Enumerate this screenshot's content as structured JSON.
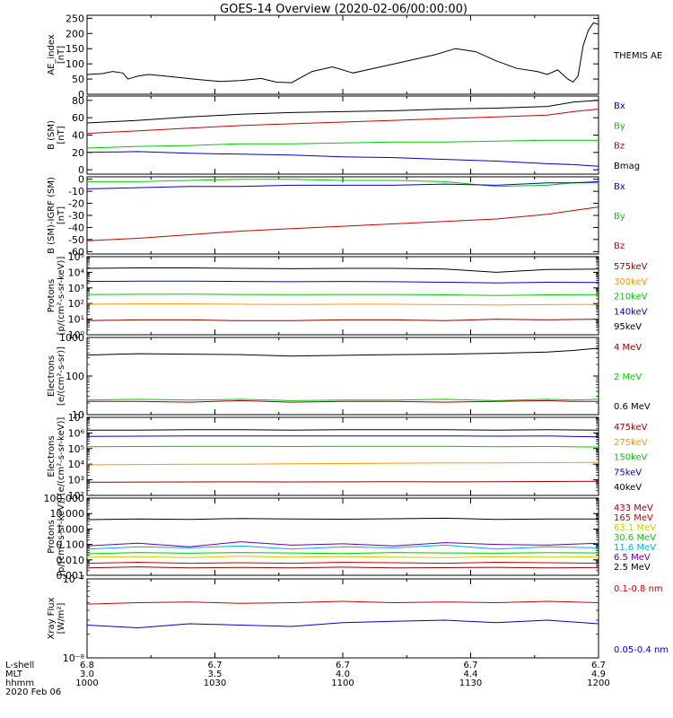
{
  "title": "GOES-14 Overview (2020-02-06/00:00:00)",
  "colors": {
    "black": "#000000",
    "red": "#cc0000",
    "green": "#00cc00",
    "blue": "#0000cc",
    "orange": "#ff9900",
    "cyan": "#00aaff",
    "yellow": "#cccc00",
    "purple": "#6600aa",
    "dark_red": "#990000"
  },
  "footer": {
    "row_labels": [
      "L-shell",
      "MLT",
      "hhmm",
      "2020 Feb 06"
    ],
    "ticks": [
      {
        "time": 1000,
        "lshell": "6.8",
        "mlt": "3.0",
        "hhmm": "1000"
      },
      {
        "time": 1030,
        "lshell": "6.7",
        "mlt": "3.5",
        "hhmm": "1030"
      },
      {
        "time": 1100,
        "lshell": "6.7",
        "mlt": "4.0",
        "hhmm": "1100"
      },
      {
        "time": 1130,
        "lshell": "6.7",
        "mlt": "4.4",
        "hhmm": "1130"
      },
      {
        "time": 1200,
        "lshell": "6.7",
        "mlt": "4.9",
        "hhmm": "1200"
      }
    ]
  },
  "chart_data": [
    {
      "type": "line",
      "ylabel": [
        "AE_index",
        "[nT]"
      ],
      "ylim": [
        0,
        260
      ],
      "scale": "linear",
      "yticks": [
        0,
        50,
        100,
        150,
        200,
        250
      ],
      "ytick_labels": [
        "0",
        "50",
        "100",
        "150",
        "200",
        "250"
      ],
      "x": [
        0,
        3,
        5,
        7,
        8,
        10,
        12,
        14,
        18,
        22,
        26,
        30,
        34,
        37,
        40,
        44,
        48,
        52,
        56,
        60,
        64,
        68,
        72,
        76,
        80,
        84,
        88,
        90,
        92,
        94,
        95,
        96,
        97,
        98,
        99,
        100
      ],
      "series": [
        {
          "name": "THEMIS AE",
          "color": "black",
          "values": [
            65,
            68,
            75,
            70,
            50,
            60,
            65,
            62,
            55,
            48,
            42,
            45,
            52,
            40,
            38,
            75,
            90,
            70,
            85,
            100,
            115,
            130,
            150,
            140,
            110,
            85,
            75,
            65,
            80,
            50,
            40,
            60,
            160,
            210,
            235,
            230
          ]
        }
      ],
      "labels": [
        {
          "text": "THEMIS AE",
          "color": "black"
        }
      ]
    },
    {
      "type": "line",
      "ylabel": [
        "B (SM)",
        "[nT]"
      ],
      "ylim": [
        -5,
        85
      ],
      "scale": "linear",
      "yticks": [
        0,
        20,
        40,
        60,
        80
      ],
      "ytick_labels": [
        "0",
        "20",
        "40",
        "60",
        "80"
      ],
      "x": [
        0,
        10,
        20,
        30,
        40,
        50,
        60,
        70,
        80,
        90,
        95,
        100
      ],
      "series": [
        {
          "name": "Bmag",
          "color": "black",
          "values": [
            54,
            57,
            61,
            64,
            66,
            67,
            68,
            70,
            71,
            73,
            78,
            80
          ]
        },
        {
          "name": "Bz",
          "color": "red",
          "values": [
            42,
            45,
            48,
            51,
            53,
            55,
            57,
            59,
            61,
            63,
            67,
            70
          ]
        },
        {
          "name": "By",
          "color": "green",
          "values": [
            25,
            27,
            28,
            30,
            30,
            31,
            32,
            32,
            33,
            34,
            34,
            34
          ]
        },
        {
          "name": "Bx",
          "color": "blue",
          "values": [
            20,
            21,
            19,
            18,
            17,
            15,
            14,
            12,
            10,
            7,
            6,
            4
          ]
        }
      ],
      "labels": [
        {
          "text": "Bx",
          "color": "blue"
        },
        {
          "text": "By",
          "color": "green"
        },
        {
          "text": "Bz",
          "color": "red"
        },
        {
          "text": "Bmag",
          "color": "black"
        }
      ]
    },
    {
      "type": "line",
      "ylabel": [
        "B (SM)-IGRF (SM)",
        "[nT]"
      ],
      "ylim": [
        -62,
        2
      ],
      "scale": "linear",
      "yticks": [
        0,
        -10,
        -20,
        -30,
        -40,
        -50,
        -60
      ],
      "ytick_labels": [
        "0",
        "-10",
        "-20",
        "-30",
        "-40",
        "-50",
        "-60"
      ],
      "x": [
        0,
        10,
        20,
        30,
        40,
        50,
        60,
        70,
        80,
        90,
        95,
        100
      ],
      "series": [
        {
          "name": "By",
          "color": "green",
          "values": [
            -2,
            -2,
            -1,
            0,
            0,
            -1,
            -1,
            -2,
            -6,
            -5,
            -3,
            -3
          ]
        },
        {
          "name": "Bx",
          "color": "blue",
          "values": [
            -8,
            -7,
            -6,
            -6,
            -5,
            -5,
            -5,
            -4,
            -5,
            -3,
            -3,
            -2
          ]
        },
        {
          "name": "Bz",
          "color": "red",
          "values": [
            -51,
            -49,
            -46,
            -43,
            -41,
            -39,
            -37,
            -35,
            -33,
            -29,
            -26,
            -23
          ]
        }
      ],
      "labels": [
        {
          "text": "Bx",
          "color": "blue"
        },
        {
          "text": "By",
          "color": "green"
        },
        {
          "text": "Bz",
          "color": "red"
        }
      ]
    },
    {
      "type": "line",
      "ylabel": [
        "Protons",
        "[p/(cm²-s-sr-keV)]"
      ],
      "ylim": [
        1,
        100000
      ],
      "scale": "log",
      "yticks": [
        1,
        10,
        100,
        1000,
        10000,
        100000
      ],
      "ytick_labels": [
        "10⁰",
        "10¹",
        "10²",
        "10³",
        "10⁴",
        "10⁵"
      ],
      "x": [
        0,
        10,
        20,
        30,
        40,
        50,
        60,
        70,
        80,
        90,
        100
      ],
      "series": [
        {
          "name": "95keV",
          "color": "black",
          "values": [
            18000,
            19000,
            19000,
            18000,
            17000,
            18000,
            18000,
            16000,
            10000,
            15000,
            16000
          ]
        },
        {
          "name": "140keV",
          "color": "blue",
          "values": [
            2600,
            2700,
            2700,
            2600,
            2500,
            2600,
            2500,
            2300,
            2100,
            2300,
            2200
          ]
        },
        {
          "name": "210keV",
          "color": "green",
          "values": [
            380,
            390,
            400,
            380,
            370,
            380,
            380,
            360,
            330,
            360,
            370
          ]
        },
        {
          "name": "300keV",
          "color": "orange",
          "values": [
            90,
            95,
            95,
            90,
            88,
            90,
            90,
            85,
            80,
            85,
            88
          ]
        },
        {
          "name": "575keV",
          "color": "dark_red",
          "values": [
            8,
            9,
            9,
            8,
            8,
            9,
            9,
            8,
            10,
            9,
            10
          ]
        }
      ],
      "labels": [
        {
          "text": "575keV",
          "color": "dark_red"
        },
        {
          "text": "300keV",
          "color": "orange"
        },
        {
          "text": "210keV",
          "color": "green"
        },
        {
          "text": "140keV",
          "color": "blue"
        },
        {
          "text": "95keV",
          "color": "black"
        }
      ]
    },
    {
      "type": "line",
      "ylabel": [
        "Electrons",
        "[e/(cm²-s-sr)]"
      ],
      "ylim": [
        10,
        1000
      ],
      "scale": "log",
      "yticks": [
        10,
        100,
        1000
      ],
      "ytick_labels": [
        "10",
        "100",
        "1000"
      ],
      "x": [
        0,
        10,
        20,
        30,
        40,
        50,
        60,
        70,
        80,
        90,
        95,
        100
      ],
      "series": [
        {
          "name": "0.6 MeV",
          "color": "black",
          "values": [
            350,
            380,
            370,
            360,
            330,
            345,
            360,
            370,
            390,
            420,
            460,
            530
          ]
        },
        {
          "name": "2 MeV",
          "color": "green",
          "values": [
            24,
            25,
            24,
            25,
            23,
            24,
            24,
            25,
            23,
            25,
            24,
            25
          ]
        },
        {
          "name": "4 MeV",
          "color": "dark_red",
          "values": [
            22,
            22,
            21,
            23,
            21,
            22,
            22,
            21,
            22,
            23,
            22,
            22
          ]
        }
      ],
      "labels": [
        {
          "text": "4 MeV",
          "color": "dark_red"
        },
        {
          "text": "2 MeV",
          "color": "green"
        },
        {
          "text": "0.6 MeV",
          "color": "black"
        }
      ]
    },
    {
      "type": "line",
      "ylabel": [
        "Electrons",
        "[e/(cm²-s-sr-keV)]"
      ],
      "ylim": [
        100,
        10000000
      ],
      "scale": "log",
      "yticks": [
        100,
        1000,
        10000,
        100000,
        1000000,
        10000000
      ],
      "ytick_labels": [
        "10²",
        "10³",
        "10⁴",
        "10⁵",
        "10⁶",
        "10⁷"
      ],
      "x": [
        0,
        10,
        20,
        30,
        40,
        50,
        60,
        70,
        80,
        90,
        100
      ],
      "series": [
        {
          "name": "40keV",
          "color": "black",
          "values": [
            1500000,
            1500000,
            1600000,
            1600000,
            1500000,
            1600000,
            1600000,
            1600000,
            1500000,
            1600000,
            1500000
          ]
        },
        {
          "name": "75keV",
          "color": "blue",
          "values": [
            600000,
            620000,
            640000,
            650000,
            640000,
            650000,
            640000,
            650000,
            620000,
            640000,
            560000
          ]
        },
        {
          "name": "150keV",
          "color": "green",
          "values": [
            130000,
            135000,
            140000,
            140000,
            135000,
            140000,
            140000,
            140000,
            130000,
            135000,
            125000
          ]
        },
        {
          "name": "275keV",
          "color": "orange",
          "values": [
            9000,
            9500,
            10000,
            10000,
            10500,
            11000,
            11500,
            12000,
            12000,
            12500,
            13000
          ]
        },
        {
          "name": "475keV",
          "color": "dark_red",
          "values": [
            700,
            720,
            730,
            740,
            730,
            740,
            750,
            740,
            760,
            780,
            800
          ]
        }
      ],
      "labels": [
        {
          "text": "475keV",
          "color": "dark_red"
        },
        {
          "text": "275keV",
          "color": "orange"
        },
        {
          "text": "150keV",
          "color": "green"
        },
        {
          "text": "75keV",
          "color": "blue"
        },
        {
          "text": "40keV",
          "color": "black"
        }
      ]
    },
    {
      "type": "line",
      "ylabel": [
        "Protons",
        "[p/(cm²-s-sr-keV)]"
      ],
      "ylim": [
        0.001,
        100
      ],
      "scale": "log",
      "yticks": [
        0.001,
        0.01,
        0.1,
        1,
        10,
        100
      ],
      "ytick_labels": [
        "0.001",
        "0.010",
        "0.100",
        "1.000",
        "10.000",
        "100.000"
      ],
      "x": [
        0,
        10,
        20,
        30,
        40,
        50,
        60,
        70,
        80,
        90,
        100
      ],
      "series": [
        {
          "name": "2.5 MeV",
          "color": "black",
          "values": [
            4,
            4.5,
            4.2,
            4.8,
            4.5,
            4.3,
            4.6,
            5,
            4.2,
            4.5,
            4.4
          ]
        },
        {
          "name": "6.5 MeV",
          "color": "purple",
          "values": [
            0.08,
            0.12,
            0.07,
            0.15,
            0.09,
            0.11,
            0.08,
            0.13,
            0.1,
            0.09,
            0.12
          ]
        },
        {
          "name": "11.6 MeV",
          "color": "cyan",
          "values": [
            0.05,
            0.07,
            0.06,
            0.08,
            0.05,
            0.07,
            0.06,
            0.09,
            0.05,
            0.07,
            0.06
          ]
        },
        {
          "name": "30.6 MeV",
          "color": "green",
          "values": [
            0.025,
            0.03,
            0.027,
            0.03,
            0.028,
            0.026,
            0.03,
            0.028,
            0.027,
            0.029,
            0.028
          ]
        },
        {
          "name": "63.1 MeV",
          "color": "yellow",
          "values": [
            0.015,
            0.016,
            0.014,
            0.017,
            0.015,
            0.016,
            0.015,
            0.014,
            0.016,
            0.015,
            0.016
          ]
        },
        {
          "name": "165 MeV",
          "color": "red",
          "values": [
            0.006,
            0.007,
            0.006,
            0.0065,
            0.006,
            0.007,
            0.0065,
            0.006,
            0.007,
            0.0065,
            0.006
          ]
        },
        {
          "name": "433 MeV",
          "color": "dark_red",
          "values": [
            0.003,
            0.0035,
            0.003,
            0.0032,
            0.003,
            0.0034,
            0.003,
            0.0031,
            0.0033,
            0.003,
            0.0032
          ]
        }
      ],
      "labels": [
        {
          "text": "433 MeV",
          "color": "dark_red"
        },
        {
          "text": "165 MeV",
          "color": "red"
        },
        {
          "text": "63.1 MeV",
          "color": "yellow"
        },
        {
          "text": "30.6 MeV",
          "color": "green"
        },
        {
          "text": "11.6 MeV",
          "color": "cyan"
        },
        {
          "text": "6.5 MeV",
          "color": "purple"
        },
        {
          "text": "2.5 MeV",
          "color": "black"
        }
      ]
    },
    {
      "type": "line",
      "ylabel": [
        "Xray Flux",
        "[W/m²]"
      ],
      "ylim": [
        1e-08,
        1e-07
      ],
      "scale": "log",
      "yticks": [
        1e-08,
        1e-07
      ],
      "ytick_labels": [
        "10⁻⁸",
        "10⁻⁷"
      ],
      "x": [
        0,
        10,
        20,
        30,
        40,
        50,
        60,
        70,
        80,
        90,
        100
      ],
      "series": [
        {
          "name": "0.1-0.8 nm",
          "color": "red",
          "values": [
            4.8e-08,
            5e-08,
            5.1e-08,
            4.9e-08,
            5e-08,
            5.2e-08,
            5e-08,
            5.1e-08,
            5e-08,
            5.2e-08,
            5e-08
          ]
        },
        {
          "name": "0.05-0.4 nm",
          "color": "blue",
          "values": [
            2.6e-08,
            2.4e-08,
            2.7e-08,
            2.6e-08,
            2.5e-08,
            2.8e-08,
            2.9e-08,
            3e-08,
            2.8e-08,
            3e-08,
            2.7e-08
          ]
        }
      ],
      "labels": [
        {
          "text": "0.1-0.8 nm",
          "color": "red"
        },
        {
          "text": "0.05-0.4 nm",
          "color": "blue"
        }
      ]
    }
  ]
}
